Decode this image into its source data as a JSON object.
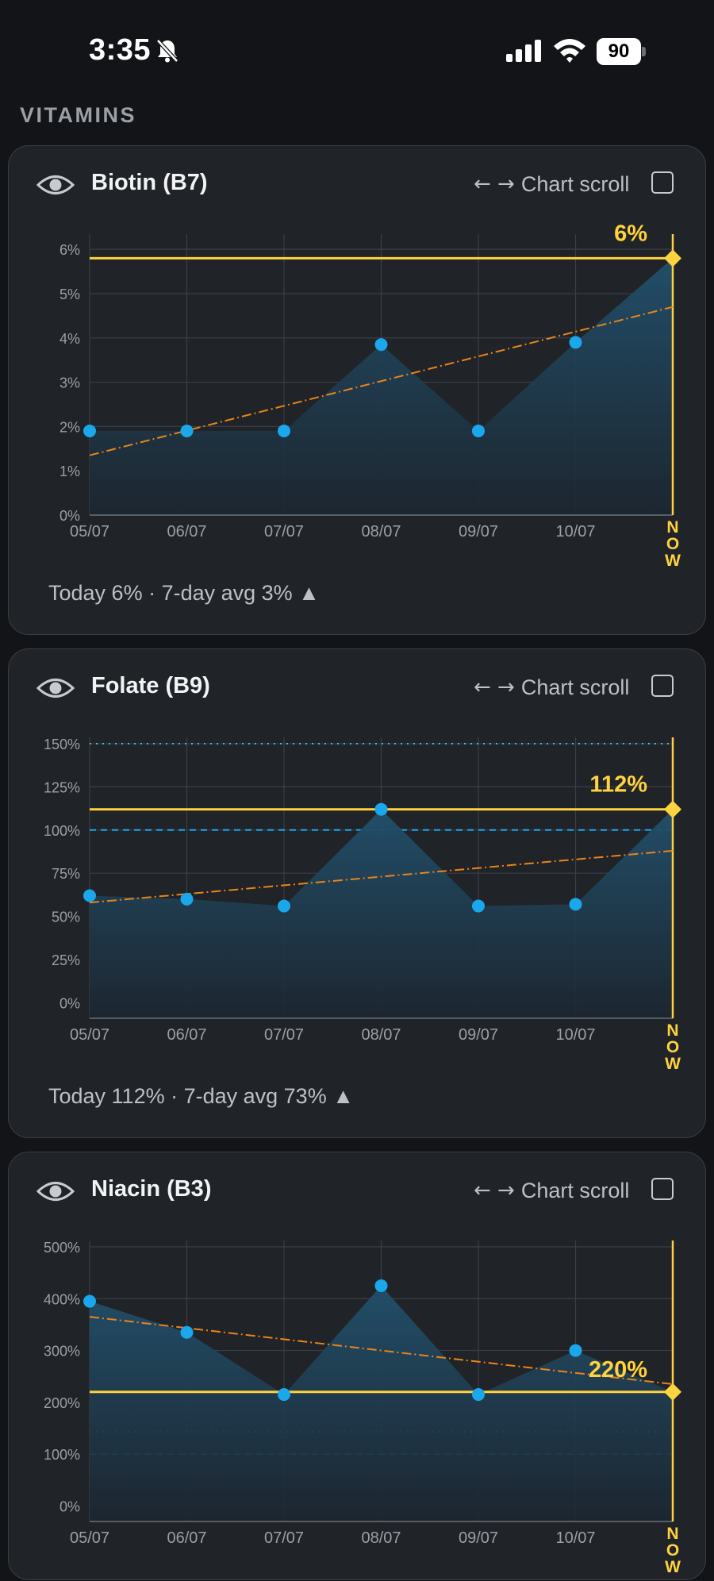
{
  "status": {
    "time": "3:35",
    "battery": "90"
  },
  "section_title": "VITAMINS",
  "controls": {
    "scroll_label": "Chart scroll",
    "scroll_arrows": "← →"
  },
  "colors": {
    "accent": "#ffd23f",
    "point": "#1aa7ec",
    "trend": "#e8851a",
    "area": "#1e3c50",
    "grid": "#3a3f46"
  },
  "cards": [
    {
      "title": "Biotin (B7)",
      "summary": "Today 6% · 7-day avg 3% ▲",
      "chart_data": {
        "type": "area",
        "categories": [
          "05/07",
          "06/07",
          "07/07",
          "08/07",
          "09/07",
          "10/07",
          "Now"
        ],
        "values": [
          1.9,
          1.9,
          1.9,
          3.85,
          1.9,
          3.9,
          5.8
        ],
        "yticks": [
          "6%",
          "5%",
          "4%",
          "3%",
          "2%",
          "1%",
          "0%"
        ],
        "ylim": [
          0,
          6.2
        ],
        "today_label": "6%",
        "today_value": 5.8,
        "trend": [
          1.35,
          4.7
        ],
        "ref_dashed": null,
        "ref_dotted": null,
        "grid": true
      }
    },
    {
      "title": "Folate (B9)",
      "summary": "Today 112% · 7-day avg 73% ▲",
      "chart_data": {
        "type": "area",
        "categories": [
          "05/07",
          "06/07",
          "07/07",
          "08/07",
          "09/07",
          "10/07",
          "Now"
        ],
        "values": [
          62,
          60,
          56,
          112,
          56,
          57,
          112
        ],
        "yticks": [
          "150%",
          "125%",
          "100%",
          "75%",
          "50%",
          "25%",
          "0%"
        ],
        "ylim": [
          -9,
          150
        ],
        "today_label": "112%",
        "today_value": 112,
        "trend": [
          58,
          88
        ],
        "ref_dashed": 100,
        "ref_dotted": 150,
        "grid": true
      }
    },
    {
      "title": "Niacin (B3)",
      "summary": "",
      "chart_data": {
        "type": "area",
        "categories": [
          "05/07",
          "06/07",
          "07/07",
          "08/07",
          "09/07",
          "10/07",
          "Now"
        ],
        "values": [
          395,
          335,
          215,
          425,
          215,
          300,
          220
        ],
        "yticks": [
          "500%",
          "400%",
          "300%",
          "200%",
          "100%",
          "0%"
        ],
        "ylim": [
          -30,
          500
        ],
        "today_label": "220%",
        "today_value": 220,
        "trend": [
          365,
          235
        ],
        "ref_dashed": 100,
        "ref_dotted": 143,
        "grid": true
      }
    }
  ]
}
